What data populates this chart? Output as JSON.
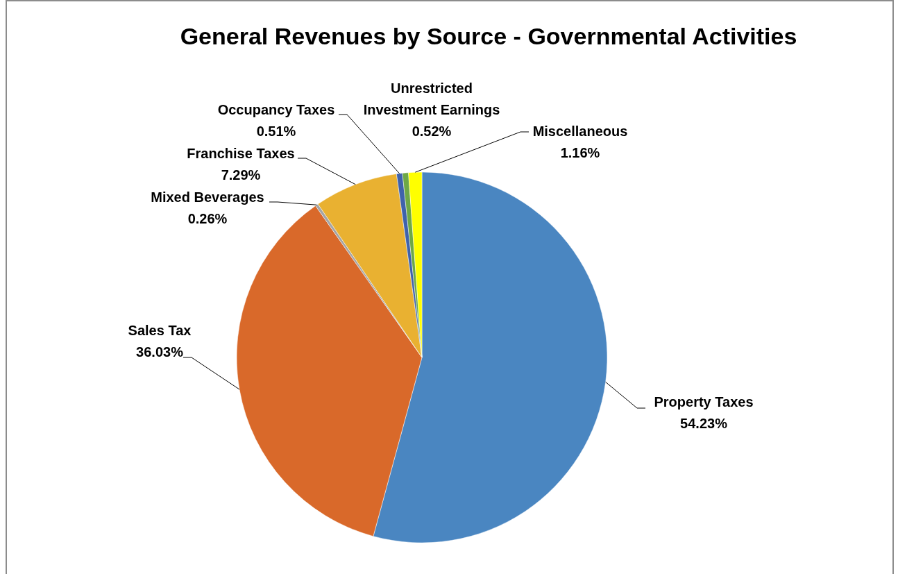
{
  "chart_data": {
    "type": "pie",
    "title": "General Revenues by Source - Governmental Activities",
    "categories": [
      "Property Taxes",
      "Sales Tax",
      "Mixed Beverages",
      "Franchise Taxes",
      "Occupancy Taxes",
      "Unrestricted Investment Earnings",
      "Miscellaneous"
    ],
    "values": [
      54.23,
      36.03,
      0.26,
      7.29,
      0.51,
      0.52,
      1.16
    ],
    "colors": [
      "#4a86c1",
      "#d9692a",
      "#a5a5a5",
      "#e9b131",
      "#3f62ab",
      "#6ea846",
      "#ffff00"
    ],
    "value_labels": [
      "54.23%",
      "36.03%",
      "0.26%",
      "7.29%",
      "0.51%",
      "0.52%",
      "1.16%"
    ]
  }
}
